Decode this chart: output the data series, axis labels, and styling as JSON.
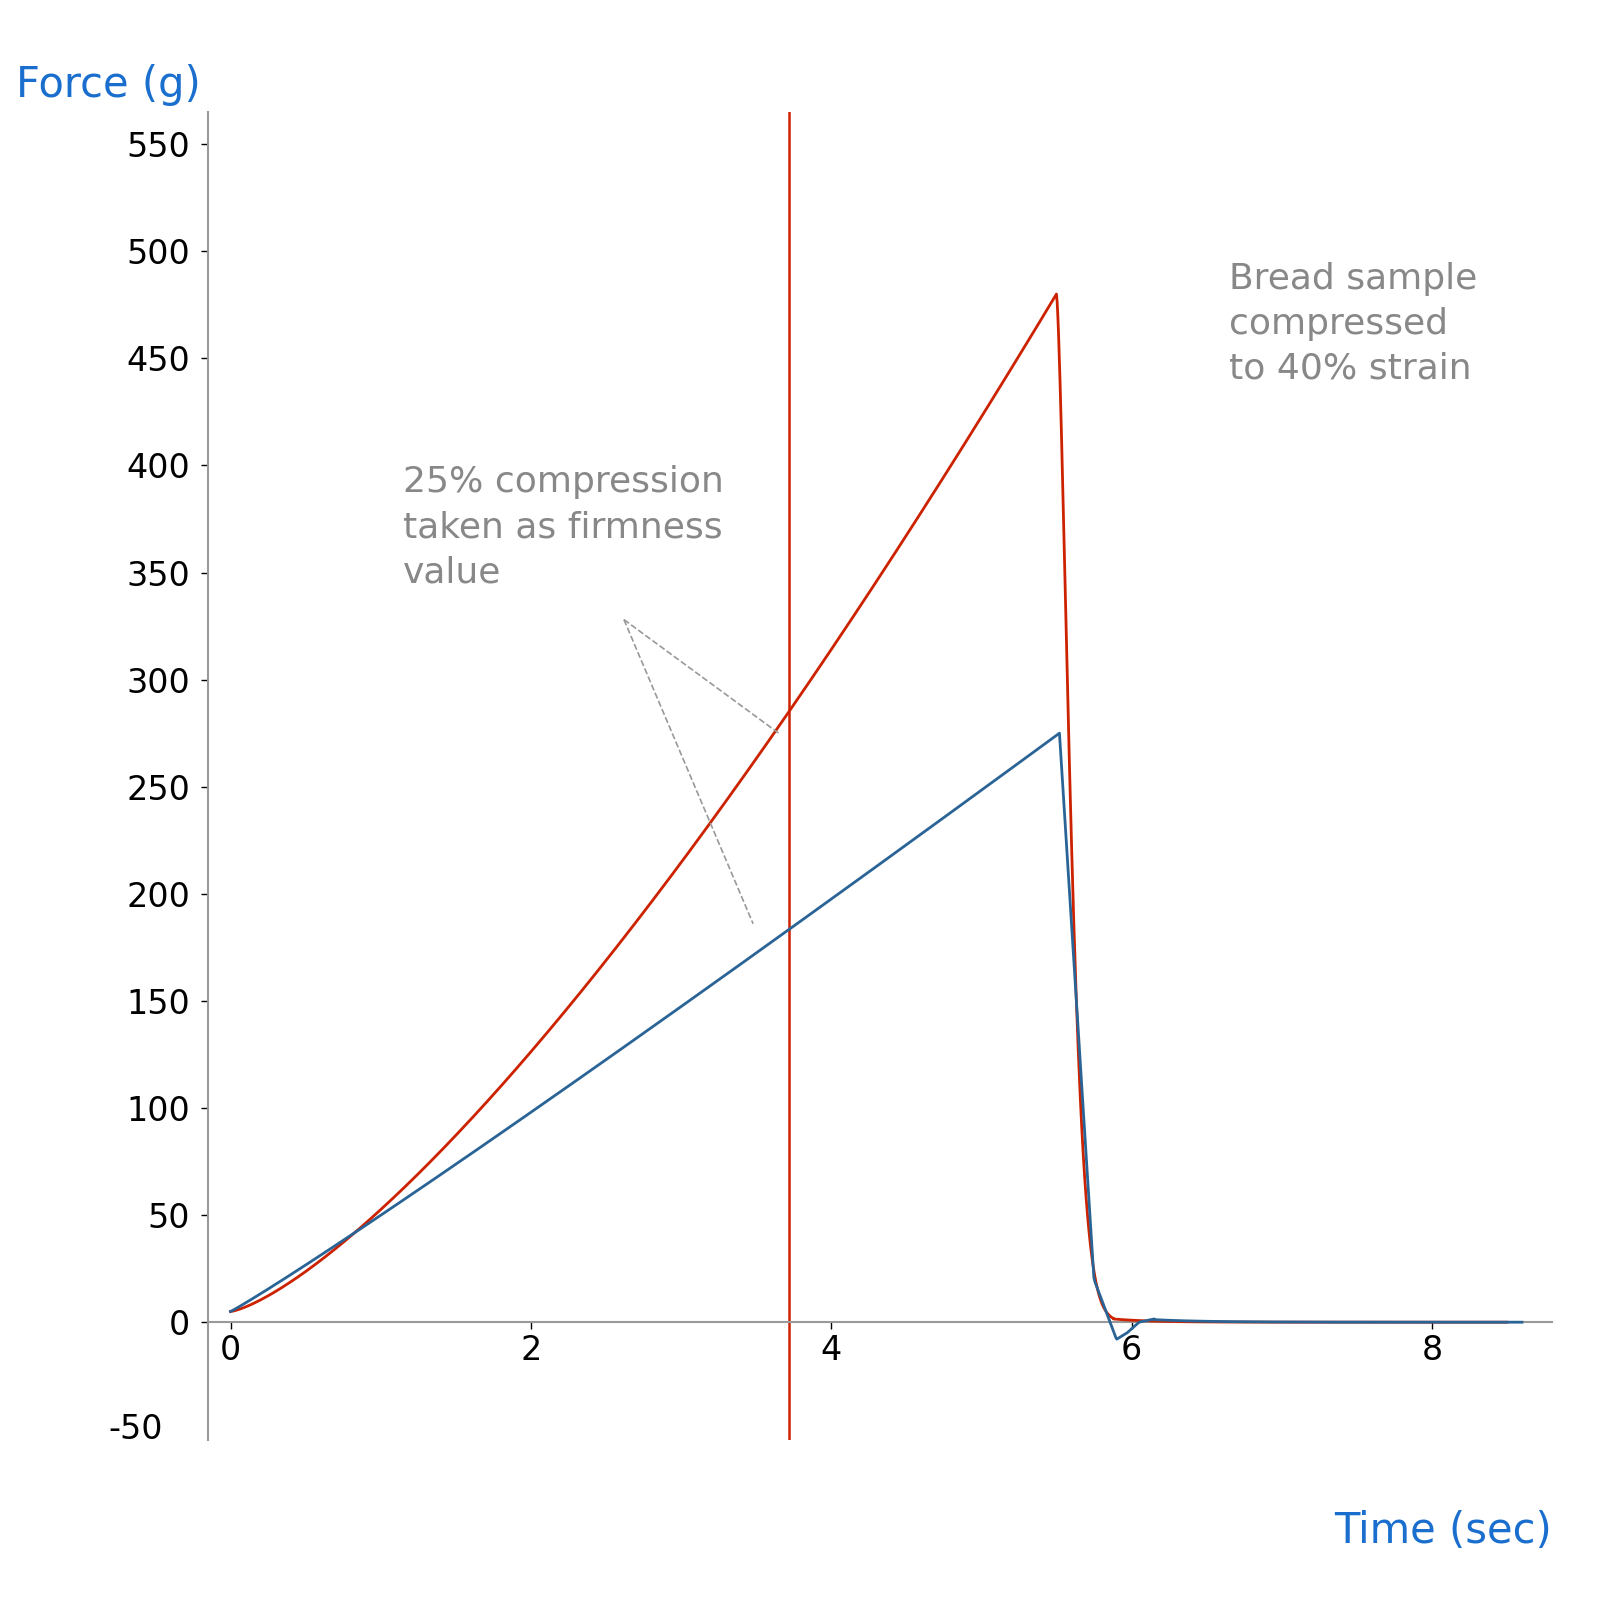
{
  "xlabel": "Time (sec)",
  "ylabel": "Force (g)",
  "xlim": [
    -0.15,
    8.8
  ],
  "ylim": [
    -55,
    565
  ],
  "xticks": [
    0,
    2,
    4,
    6,
    8
  ],
  "yticks": [
    0,
    50,
    100,
    150,
    200,
    250,
    300,
    350,
    400,
    450,
    500,
    550
  ],
  "ytick_labels": [
    "0",
    "50",
    "100",
    "150",
    "200",
    "250",
    "300",
    "350",
    "400",
    "450",
    "500",
    "550"
  ],
  "xlabel_color": "#1a6fce",
  "ylabel_color": "#1a6fce",
  "xlabel_fontsize": 30,
  "ylabel_fontsize": 30,
  "tick_fontsize": 24,
  "vline_x": 3.72,
  "vline_color": "#cc2200",
  "red_line_color": "#cc2200",
  "blue_line_color": "#2a6496",
  "annotation_text1": "25% compression\ntaken as firmness\nvalue",
  "annotation_text2": "Bread sample\ncompressed\nto 40% strain",
  "annotation_color": "#888888",
  "annotation_fontsize": 26,
  "background_color": "#ffffff",
  "axis_color": "#999999",
  "minus50_label": "-50"
}
